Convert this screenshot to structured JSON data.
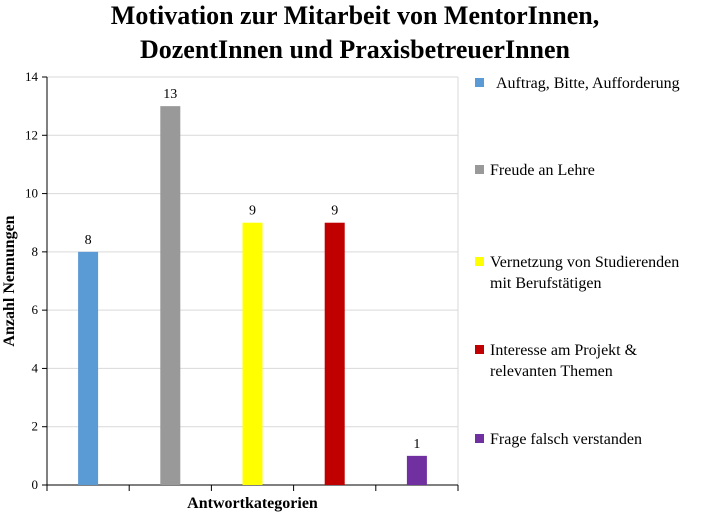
{
  "chart_data": {
    "type": "bar",
    "title_lines": [
      "Motivation zur Mitarbeit von MentorInnen,",
      "DozentInnen und PraxisbetreuerInnen"
    ],
    "xlabel": "Antwortkategorien",
    "ylabel": "Anzahl Nennungen",
    "ylim": [
      0,
      14
    ],
    "yticks": [
      0,
      2,
      4,
      6,
      8,
      10,
      12,
      14
    ],
    "grid": true,
    "legend_position": "right",
    "categories": [
      "Auftrag, Bitte, Aufforderung",
      "Freude an Lehre",
      "Vernetzung von Studierenden mit Berufstätigen",
      "Interesse am Projekt & relevanten Themen",
      "Frage falsch verstanden"
    ],
    "values": [
      8,
      13,
      9,
      9,
      1
    ],
    "colors": [
      "#5b9bd5",
      "#999999",
      "#ffff00",
      "#c00000",
      "#7030a0"
    ],
    "legend": [
      {
        "lines": [
          "Auftrag, Bitte, Aufforderung"
        ]
      },
      {
        "lines": [
          "Freude an Lehre"
        ]
      },
      {
        "lines": [
          "Vernetzung von Studierenden",
          "mit Berufstätigen"
        ]
      },
      {
        "lines": [
          "Interesse am Projekt &",
          "relevanten Themen"
        ]
      },
      {
        "lines": [
          "Frage falsch verstanden"
        ]
      }
    ]
  }
}
